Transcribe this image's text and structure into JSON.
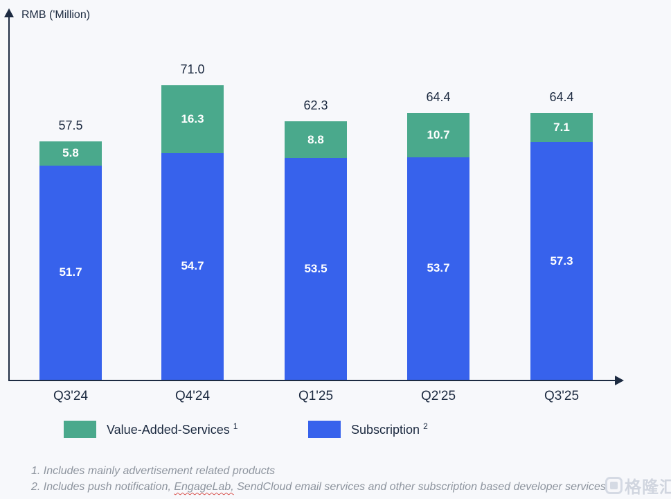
{
  "page": {
    "background": "#F7F8FB"
  },
  "axis": {
    "ylabel": "RMB ('Million)",
    "color": "#1D2B42"
  },
  "chart_data": {
    "type": "bar",
    "stacked": true,
    "title": "",
    "xlabel": "",
    "ylabel": "RMB ('Million)",
    "categories": [
      "Q3'24",
      "Q4'24",
      "Q1'25",
      "Q2'25",
      "Q3'25"
    ],
    "series": [
      {
        "name": "Subscription",
        "color": "#3762EC",
        "values": [
          51.7,
          54.7,
          53.5,
          53.7,
          57.3
        ]
      },
      {
        "name": "Value-Added-Services",
        "color": "#4AA98C",
        "values": [
          5.8,
          16.3,
          8.8,
          10.7,
          7.1
        ]
      }
    ],
    "stack_order": "series[0] bottom, series[1] top",
    "totals": [
      57.5,
      71.0,
      62.3,
      64.4,
      64.4
    ],
    "value_label_color": "#FFFFFF",
    "total_label_color": "#1C2A40",
    "grid": false,
    "legend_position": "bottom",
    "ylim": [
      0,
      88
    ]
  },
  "legend": {
    "items": [
      {
        "label": "Value-Added-Services",
        "sup": "1",
        "color": "#4AA98C"
      },
      {
        "label": "Subscription",
        "sup": "2",
        "color": "#3762EC"
      }
    ]
  },
  "footnotes": {
    "line1": "1. Includes mainly advertisement related products",
    "line2_pre": "2. Includes push notification, ",
    "line2_flagged": "EngageLab,",
    "line2_post": " SendCloud email services and other subscription based developer services"
  },
  "watermark": {
    "text": "格隆汇"
  }
}
